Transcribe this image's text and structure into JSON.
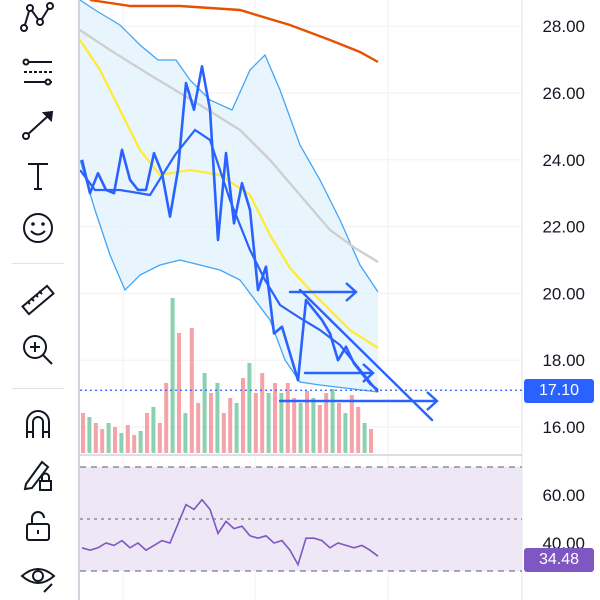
{
  "toolbar": {
    "tools": [
      {
        "name": "pattern-tool-icon"
      },
      {
        "name": "fib-retracement-icon"
      },
      {
        "name": "trend-line-icon"
      },
      {
        "name": "text-tool-icon"
      },
      {
        "name": "emoji-tool-icon"
      },
      {
        "name": "ruler-icon"
      },
      {
        "name": "zoom-in-icon"
      },
      {
        "name": "magnet-icon"
      },
      {
        "name": "lock-drawing-icon"
      },
      {
        "name": "unlock-icon"
      },
      {
        "name": "eye-icon"
      }
    ]
  },
  "price_axis": {
    "labels": [
      "28.00",
      "26.00",
      "24.00",
      "22.00",
      "20.00",
      "18.00",
      "16.00"
    ]
  },
  "current_price": {
    "label": "17.10",
    "value": 17.1,
    "color": "#2962ff"
  },
  "rsi_axis": {
    "labels": [
      "60.00",
      "40.00"
    ]
  },
  "rsi_value": {
    "label": "34.48",
    "value": 34.48,
    "color": "#7e57c2"
  },
  "colors": {
    "price_line": "#2962ff",
    "bollinger": "#42a5f5",
    "bollinger_fill": "#e3f2fd",
    "ma_yellow": "#ffeb3b",
    "ma_gray": "#cfcfcf",
    "ma_orange": "#e65100",
    "volume_up": "#89d1b0",
    "volume_down": "#f5a3a6",
    "rsi_line": "#7e57c2",
    "rsi_fill": "#ede7f6"
  },
  "chart_data": {
    "type": "line",
    "price_series": [
      24.0,
      23.0,
      23.6,
      23.1,
      23.0,
      24.3,
      23.4,
      23.1,
      23.1,
      24.2,
      23.6,
      22.3,
      23.7,
      26.3,
      25.5,
      26.8,
      25.5,
      21.6,
      24.2,
      22.1,
      23.3,
      22.5,
      20.1,
      20.8,
      18.8,
      19.0,
      18.2,
      17.4,
      19.8,
      19.5,
      19.2,
      18.8,
      18.0,
      18.4,
      17.9,
      17.6,
      17.3,
      17.1
    ],
    "rsi_series": [
      38,
      37,
      38,
      40,
      39,
      41,
      38,
      40,
      37,
      39,
      41,
      40,
      48,
      56,
      54,
      58,
      54,
      44,
      49,
      46,
      47,
      43,
      42,
      43,
      40,
      41,
      37,
      31,
      42,
      42,
      41,
      38,
      40,
      39,
      38,
      39,
      37,
      34.48
    ],
    "volume_colors": [
      "down",
      "down",
      "down",
      "up",
      "up",
      "down",
      "up",
      "down",
      "down",
      "down",
      "up",
      "down",
      "up",
      "up",
      "up",
      "down",
      "down",
      "up",
      "down",
      "up",
      "down",
      "down",
      "up",
      "down",
      "up",
      "down",
      "down",
      "up",
      "down",
      "up",
      "down",
      "down",
      "up",
      "down",
      "up",
      "down",
      "down",
      "down"
    ]
  }
}
